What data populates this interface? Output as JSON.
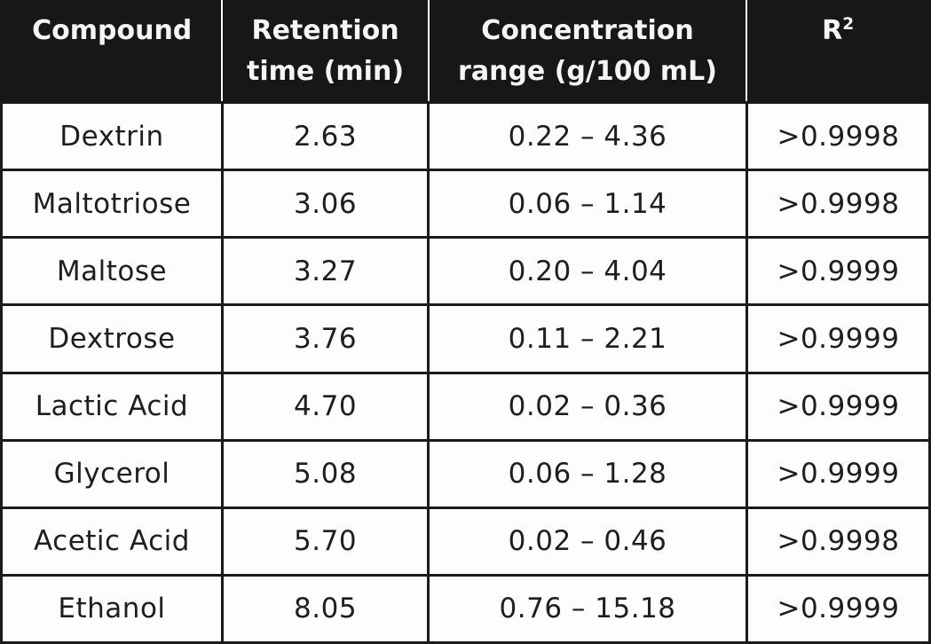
{
  "colors": {
    "header_bg": "#171717",
    "header_text": "#f5f5f5",
    "body_text": "#1e1e1e",
    "border": "#1b1b1b",
    "background": "#fdfdfd"
  },
  "header": {
    "col1": "Compound",
    "col2_line1": "Retention",
    "col2_line2": "time (min)",
    "col3_line1": "Concentration",
    "col3_line2": "range (g/100 mL)",
    "col4_base": "R",
    "col4_sup": "2"
  },
  "rows": [
    {
      "compound": "Dextrin",
      "retention_time": "2.63",
      "concentration_range": "0.22 – 4.36",
      "r2": ">0.9998"
    },
    {
      "compound": "Maltotriose",
      "retention_time": "3.06",
      "concentration_range": "0.06 – 1.14",
      "r2": ">0.9998"
    },
    {
      "compound": "Maltose",
      "retention_time": "3.27",
      "concentration_range": "0.20 – 4.04",
      "r2": ">0.9999"
    },
    {
      "compound": "Dextrose",
      "retention_time": "3.76",
      "concentration_range": "0.11 – 2.21",
      "r2": ">0.9999"
    },
    {
      "compound": "Lactic Acid",
      "retention_time": "4.70",
      "concentration_range": "0.02 – 0.36",
      "r2": ">0.9999"
    },
    {
      "compound": "Glycerol",
      "retention_time": "5.08",
      "concentration_range": "0.06 – 1.28",
      "r2": ">0.9999"
    },
    {
      "compound": "Acetic Acid",
      "retention_time": "5.70",
      "concentration_range": "0.02 – 0.46",
      "r2": ">0.9998"
    },
    {
      "compound": "Ethanol",
      "retention_time": "8.05",
      "concentration_range": "0.76 – 15.18",
      "r2": ">0.9999"
    }
  ],
  "chart_data": {
    "type": "table",
    "title": "",
    "columns": [
      "Compound",
      "Retention time (min)",
      "Concentration range (g/100 mL)",
      "R²"
    ],
    "rows": [
      [
        "Dextrin",
        "2.63",
        "0.22 – 4.36",
        ">0.9998"
      ],
      [
        "Maltotriose",
        "3.06",
        "0.06 – 1.14",
        ">0.9998"
      ],
      [
        "Maltose",
        "3.27",
        "0.20 – 4.04",
        ">0.9999"
      ],
      [
        "Dextrose",
        "3.76",
        "0.11 – 2.21",
        ">0.9999"
      ],
      [
        "Lactic Acid",
        "4.70",
        "0.02 – 0.36",
        ">0.9999"
      ],
      [
        "Glycerol",
        "5.08",
        "0.06 – 1.28",
        ">0.9999"
      ],
      [
        "Acetic Acid",
        "5.70",
        "0.02 – 0.46",
        ">0.9998"
      ],
      [
        "Ethanol",
        "8.05",
        "0.76 – 15.18",
        ">0.9999"
      ]
    ],
    "retention_time_min": [
      2.63,
      3.06,
      3.27,
      3.76,
      4.7,
      5.08,
      5.7,
      8.05
    ],
    "concentration_range_g_per_100mL": [
      [
        0.22,
        4.36
      ],
      [
        0.06,
        1.14
      ],
      [
        0.2,
        4.04
      ],
      [
        0.11,
        2.21
      ],
      [
        0.02,
        0.36
      ],
      [
        0.06,
        1.28
      ],
      [
        0.02,
        0.46
      ],
      [
        0.76,
        15.18
      ]
    ],
    "r_squared_threshold": [
      0.9998,
      0.9998,
      0.9999,
      0.9999,
      0.9999,
      0.9999,
      0.9998,
      0.9999
    ]
  }
}
